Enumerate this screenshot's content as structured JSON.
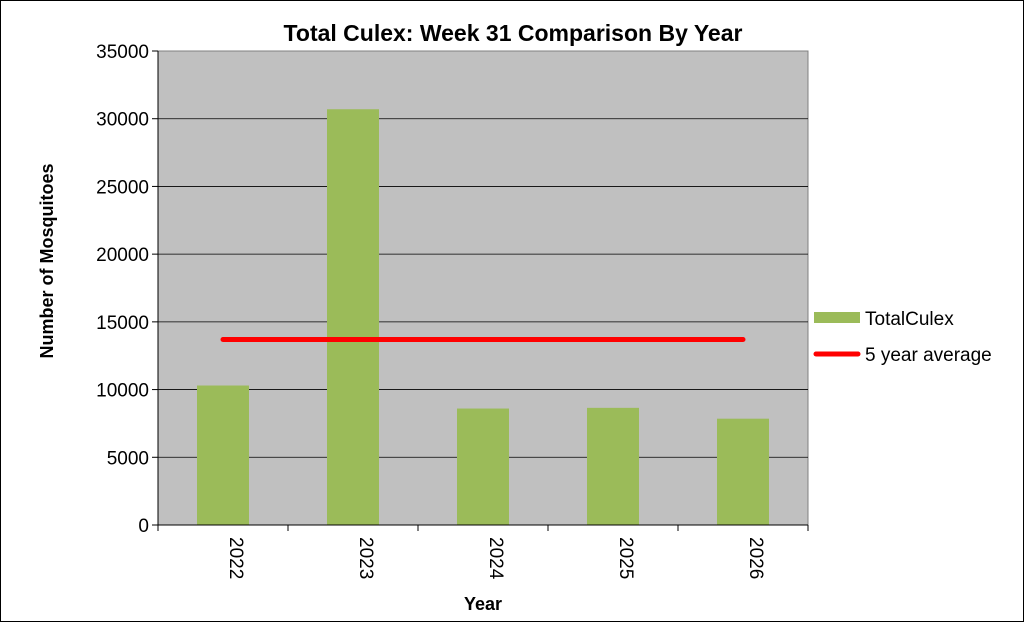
{
  "chart_data": {
    "type": "bar",
    "title": "Total Culex: Week 31 Comparison By Year",
    "xlabel": "Year",
    "ylabel": "Number of Mosquitoes",
    "categories": [
      "2022",
      "2023",
      "2024",
      "2025",
      "2026"
    ],
    "series": [
      {
        "name": "TotalCulex",
        "type": "bar",
        "color": "#9bbb59",
        "values": [
          10300,
          30700,
          8600,
          8650,
          7850
        ]
      },
      {
        "name": "5 year average",
        "type": "line",
        "color": "#ff0000",
        "values": [
          13700,
          13700,
          13700,
          13700,
          13700
        ]
      }
    ],
    "ylim": [
      0,
      35000
    ],
    "yticks": [
      "0",
      "5000",
      "10000",
      "15000",
      "20000",
      "25000",
      "30000",
      "35000"
    ],
    "grid": true,
    "plot_background": "#c0c0c0",
    "legend": "right"
  }
}
